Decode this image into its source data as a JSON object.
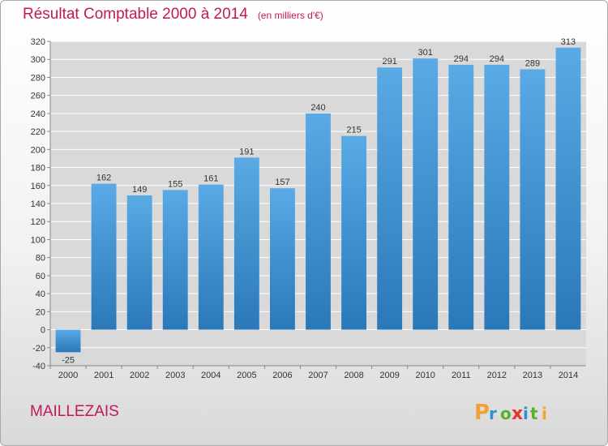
{
  "header": {
    "title": "Résultat Comptable 2000 à 2014",
    "unit": "(en milliers d'€)"
  },
  "footer": {
    "city": "MAILLEZAIS",
    "brand": "Proxiti"
  },
  "colors": {
    "accent": "#c2185b",
    "bar_top": "#5aaae6",
    "bar_bottom": "#2a78b8",
    "grid": "#ffffff",
    "plot_bg": "#d9d9d9",
    "brand_letters": [
      "#f2a233",
      "#2d8fd5",
      "#5bb030",
      "#e5352c",
      "#2d8fd5",
      "#5bb030",
      "#f2a233"
    ]
  },
  "chart_data": {
    "type": "bar",
    "title": "Résultat Comptable 2000 à 2014",
    "subtitle": "(en milliers d'€)",
    "xlabel": "",
    "ylabel": "",
    "categories": [
      "2000",
      "2001",
      "2002",
      "2003",
      "2004",
      "2005",
      "2006",
      "2007",
      "2008",
      "2009",
      "2010",
      "2011",
      "2012",
      "2013",
      "2014"
    ],
    "values": [
      -25,
      162,
      149,
      155,
      161,
      191,
      157,
      240,
      215,
      291,
      301,
      294,
      294,
      289,
      313
    ],
    "ylim": [
      -40,
      320
    ],
    "yticks": [
      -40,
      -20,
      0,
      20,
      40,
      60,
      80,
      100,
      120,
      140,
      160,
      180,
      200,
      220,
      240,
      260,
      280,
      300,
      320
    ],
    "grid": true,
    "legend": "none"
  }
}
